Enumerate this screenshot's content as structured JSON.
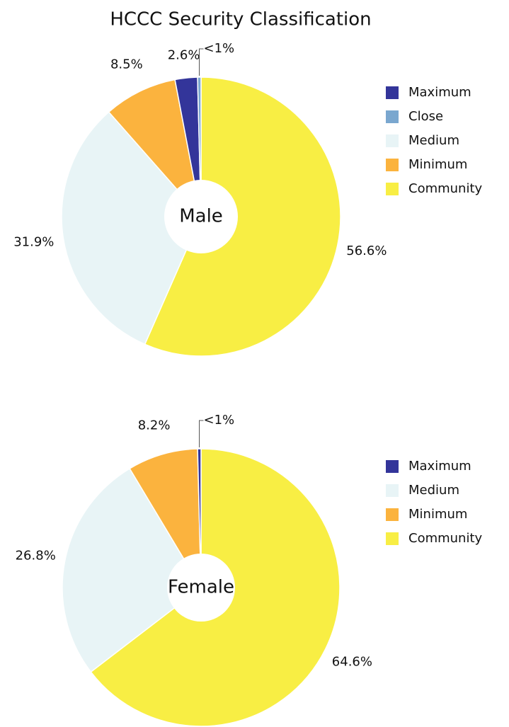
{
  "title": "HCCC Security Classification",
  "chart_data": [
    {
      "type": "pie",
      "center_label": "Male",
      "categories": [
        "Maximum",
        "Close",
        "Medium",
        "Minimum",
        "Community"
      ],
      "values": [
        2.6,
        0.4,
        31.9,
        8.5,
        56.6
      ],
      "value_labels": [
        "2.6%",
        "<1%",
        "31.9%",
        "8.5%",
        "56.6%"
      ],
      "colors": [
        "#33359a",
        "#7aa7cf",
        "#e8f4f6",
        "#fbb33e",
        "#f8ee44"
      ]
    },
    {
      "type": "pie",
      "center_label": "Female",
      "categories": [
        "Maximum",
        "Medium",
        "Minimum",
        "Community"
      ],
      "values": [
        0.4,
        26.8,
        8.2,
        64.6
      ],
      "value_labels": [
        "<1%",
        "26.8%",
        "8.2%",
        "64.6%"
      ],
      "colors": [
        "#33359a",
        "#e8f4f6",
        "#fbb33e",
        "#f8ee44"
      ]
    }
  ]
}
